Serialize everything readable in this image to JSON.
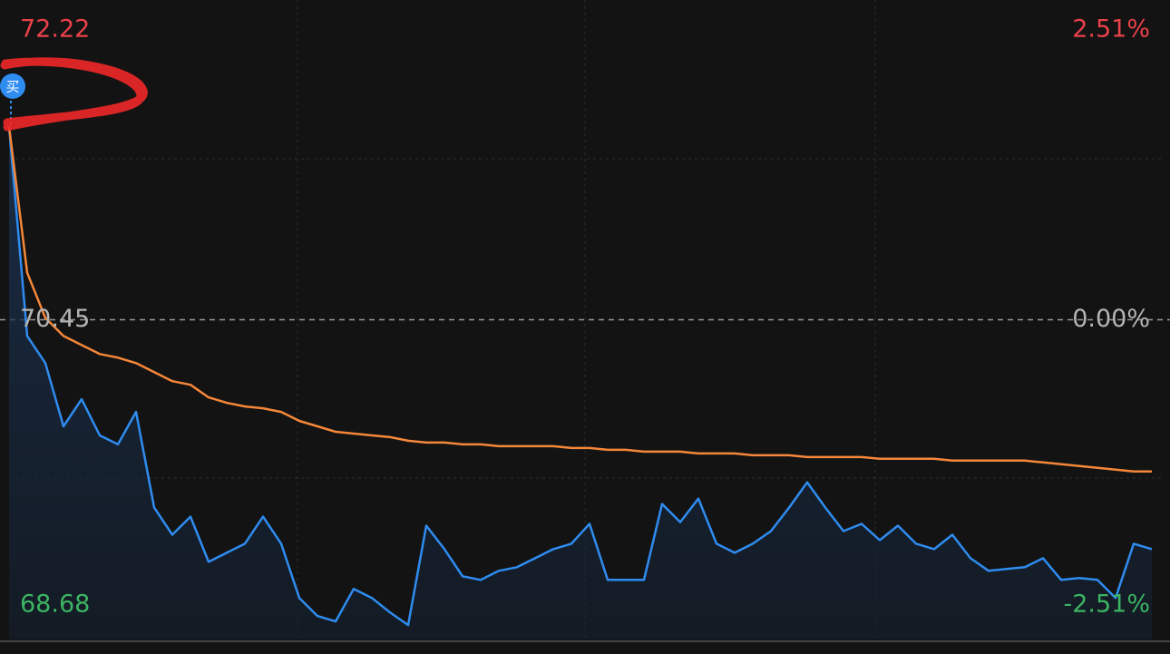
{
  "chart_data": {
    "type": "line",
    "annotation": "买",
    "ylim": [
      68.68,
      72.22
    ],
    "yticks": [
      68.68,
      70.45,
      72.22
    ],
    "y2lim": [
      -2.51,
      2.51
    ],
    "y2ticks": [
      {
        "value": -2.51,
        "label": "-2.51%"
      },
      {
        "value": 0,
        "label": "0.00%"
      },
      {
        "value": 2.51,
        "label": "2.51%"
      }
    ],
    "series": [
      {
        "color": "#2f8cf0",
        "values": [
          71.52,
          70.36,
          70.21,
          69.86,
          70.01,
          69.81,
          69.76,
          69.94,
          69.41,
          69.26,
          69.36,
          69.11,
          69.16,
          69.21,
          69.36,
          69.21,
          68.91,
          68.81,
          68.78,
          68.96,
          68.91,
          68.83,
          68.76,
          69.31,
          69.18,
          69.03,
          69.01,
          69.06,
          69.08,
          69.13,
          69.18,
          69.21,
          69.32,
          69.01,
          69.01,
          69.01,
          69.43,
          69.33,
          69.46,
          69.21,
          69.16,
          69.21,
          69.28,
          69.41,
          69.55,
          69.41,
          69.28,
          69.32,
          69.23,
          69.31,
          69.21,
          69.18,
          69.26,
          69.13,
          69.06,
          69.07,
          69.08,
          69.13,
          69.01,
          69.02,
          69.01,
          68.91,
          69.21,
          69.18
        ]
      },
      {
        "color": "#f5873a",
        "values": [
          71.52,
          70.71,
          70.46,
          70.36,
          70.31,
          70.26,
          70.24,
          70.21,
          70.16,
          70.11,
          70.09,
          70.02,
          69.99,
          69.97,
          69.96,
          69.94,
          69.89,
          69.86,
          69.83,
          69.82,
          69.81,
          69.8,
          69.78,
          69.77,
          69.77,
          69.76,
          69.76,
          69.75,
          69.75,
          69.75,
          69.75,
          69.74,
          69.74,
          69.73,
          69.73,
          69.72,
          69.72,
          69.72,
          69.71,
          69.71,
          69.71,
          69.7,
          69.7,
          69.7,
          69.69,
          69.69,
          69.69,
          69.69,
          69.68,
          69.68,
          69.68,
          69.68,
          69.67,
          69.67,
          69.67,
          69.67,
          69.67,
          69.66,
          69.65,
          69.64,
          69.63,
          69.62,
          69.61,
          69.61
        ]
      }
    ]
  }
}
